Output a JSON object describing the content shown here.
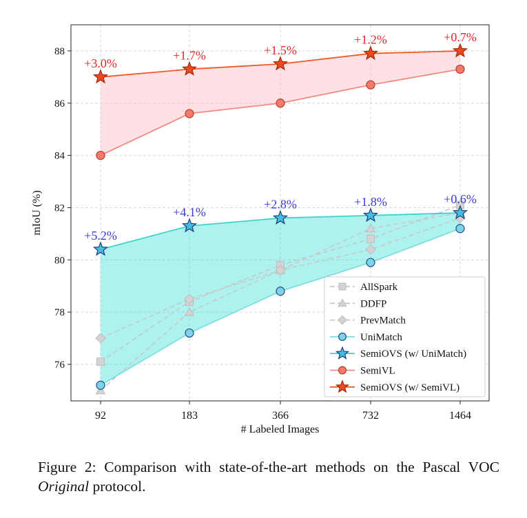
{
  "chart_data": {
    "type": "line",
    "xlabel": "# Labeled Images",
    "ylabel": "mIoU (%)",
    "categories": [
      "92",
      "183",
      "366",
      "732",
      "1464"
    ],
    "ylim": [
      74.6,
      89.0
    ],
    "yticks": [
      76,
      78,
      80,
      82,
      84,
      86,
      88
    ],
    "grid": true,
    "legend_position": "bottom-right",
    "series": [
      {
        "name": "AllSpark",
        "marker": "square",
        "color": "#c8c8c8",
        "style": "dashed",
        "values": [
          76.1,
          78.4,
          79.8,
          80.8,
          82.1
        ]
      },
      {
        "name": "DDFP",
        "marker": "triangle",
        "color": "#c8c8c8",
        "style": "dashed",
        "values": [
          75.0,
          78.0,
          79.6,
          81.2,
          81.8
        ]
      },
      {
        "name": "PrevMatch",
        "marker": "diamond",
        "color": "#c8c8c8",
        "style": "dashed",
        "values": [
          77.0,
          78.5,
          79.6,
          80.4,
          81.6
        ]
      },
      {
        "name": "UniMatch",
        "marker": "circle",
        "color": "#7fdede",
        "marker_fill": "#7ed3e6",
        "style": "solid",
        "values": [
          75.2,
          77.2,
          78.8,
          79.9,
          81.2
        ]
      },
      {
        "name": "SemiOVS (w/ UniMatch)",
        "marker": "star",
        "color": "#3dd3cc",
        "marker_fill": "#45bde0",
        "style": "solid",
        "values": [
          80.4,
          81.3,
          81.6,
          81.7,
          81.8
        ]
      },
      {
        "name": "SemiVL",
        "marker": "circle",
        "color": "#f08a7e",
        "marker_fill": "#f47a6c",
        "style": "solid",
        "values": [
          84.0,
          85.6,
          86.0,
          86.7,
          87.3
        ]
      },
      {
        "name": "SemiOVS (w/ SemiVL)",
        "marker": "star",
        "color": "#ee5a24",
        "marker_fill": "#ee4a22",
        "style": "solid",
        "values": [
          87.0,
          87.3,
          87.5,
          87.9,
          88.0
        ]
      }
    ],
    "annotations": [
      {
        "group": "semivl",
        "color": "#e8262a",
        "labels": [
          "+3.0%",
          "+1.7%",
          "+1.5%",
          "+1.2%",
          "+0.7%"
        ]
      },
      {
        "group": "unimatch",
        "color": "#3a3ad6",
        "labels": [
          "+5.2%",
          "+4.1%",
          "+2.8%",
          "+1.8%",
          "+0.6%"
        ]
      }
    ],
    "fills": [
      {
        "between": [
          "UniMatch",
          "SemiOVS (w/ UniMatch)"
        ],
        "color": "#3fe0d8"
      },
      {
        "between": [
          "SemiVL",
          "SemiOVS (w/ SemiVL)"
        ],
        "color": "#ffb6c1"
      }
    ]
  },
  "caption": {
    "prefix": "Figure 2:  Comparison with state-of-the-art methods on the Pascal VOC ",
    "emphasis": "Original",
    "suffix": " protocol."
  }
}
